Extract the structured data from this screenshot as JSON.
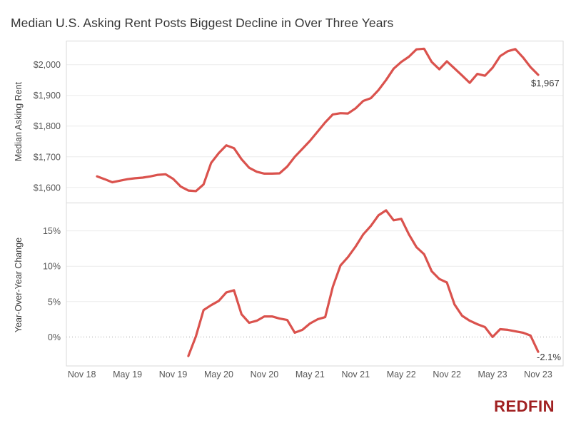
{
  "title": "Median U.S. Asking Rent Posts Biggest Decline in Over Three Years",
  "branding": {
    "logo_text": "REDFIN",
    "logo_color": "#a02021"
  },
  "colors": {
    "line": "#da524d",
    "grid": "#ebebeb",
    "panel_border": "#d8d8d8",
    "zero_line": "#a5a5a5",
    "tick_text": "#565656",
    "axis_title_text": "#404040",
    "title_text": "#363636",
    "end_label_text": "#3a3a3a"
  },
  "x_axis": {
    "frequency": "monthly",
    "range_start": "Nov 2018",
    "range_end": "Nov 2023",
    "ticks": [
      {
        "label": "Nov 18",
        "month": -2
      },
      {
        "label": "May 19",
        "month": 4
      },
      {
        "label": "Nov 19",
        "month": 10
      },
      {
        "label": "May 20",
        "month": 16
      },
      {
        "label": "Nov 20",
        "month": 22
      },
      {
        "label": "May 21",
        "month": 28
      },
      {
        "label": "Nov 21",
        "month": 34
      },
      {
        "label": "May 22",
        "month": 40
      },
      {
        "label": "Nov 22",
        "month": 46
      },
      {
        "label": "May 23",
        "month": 52
      },
      {
        "label": "Nov 23",
        "month": 58
      }
    ]
  },
  "chart_data": [
    {
      "type": "line",
      "panel": "top",
      "ylabel": "Median Asking Rent",
      "x_start": "Jan 2019",
      "x_end": "Nov 2023",
      "x_start_month": 0,
      "ylim": [
        1553,
        2076
      ],
      "yticks": [
        1600,
        1700,
        1800,
        1900,
        2000
      ],
      "ytick_labels": [
        "$1,600",
        "$1,700",
        "$1,800",
        "$1,900",
        "$2,000"
      ],
      "grid": true,
      "zero_line_dotted": false,
      "end_label": "$1,967",
      "series": [
        {
          "name": "Median Asking Rent ($)",
          "values": [
            1636,
            1627,
            1617,
            1622,
            1627,
            1630,
            1632,
            1636,
            1641,
            1643,
            1628,
            1603,
            1590,
            1588,
            1610,
            1680,
            1712,
            1737,
            1728,
            1692,
            1664,
            1651,
            1645,
            1645,
            1646,
            1668,
            1700,
            1726,
            1752,
            1782,
            1812,
            1838,
            1842,
            1841,
            1858,
            1882,
            1891,
            1917,
            1950,
            1987,
            2009,
            2026,
            2050,
            2052,
            2009,
            1985,
            2011,
            1988,
            1965,
            1941,
            1970,
            1964,
            1990,
            2028,
            2044,
            2051,
            2024,
            1992,
            1967
          ]
        }
      ]
    },
    {
      "type": "line",
      "panel": "bottom",
      "ylabel": "Year-Over-Year Change",
      "x_start": "Jan 2020",
      "x_end": "Nov 2023",
      "x_start_month": 12,
      "ylim": [
        -4.1,
        18.8
      ],
      "yticks": [
        0,
        5,
        10,
        15
      ],
      "ytick_labels": [
        "0%",
        "5%",
        "10%",
        "15%"
      ],
      "grid": true,
      "zero_line_dotted": true,
      "end_label": "-2.1%",
      "series": [
        {
          "name": "Year-Over-Year Change (%)",
          "values": [
            -2.7,
            0.1,
            3.8,
            4.5,
            5.1,
            6.3,
            6.6,
            3.2,
            2.0,
            2.3,
            2.9,
            2.9,
            2.6,
            2.4,
            0.6,
            1.0,
            1.9,
            2.5,
            2.8,
            7.1,
            10.1,
            11.3,
            12.8,
            14.5,
            15.7,
            17.2,
            17.9,
            16.5,
            16.7,
            14.5,
            12.7,
            11.7,
            9.3,
            8.2,
            7.7,
            4.6,
            3.0,
            2.3,
            1.8,
            1.4,
            0.0,
            1.1,
            1.0,
            0.8,
            0.6,
            0.2,
            -2.1
          ]
        }
      ]
    }
  ]
}
